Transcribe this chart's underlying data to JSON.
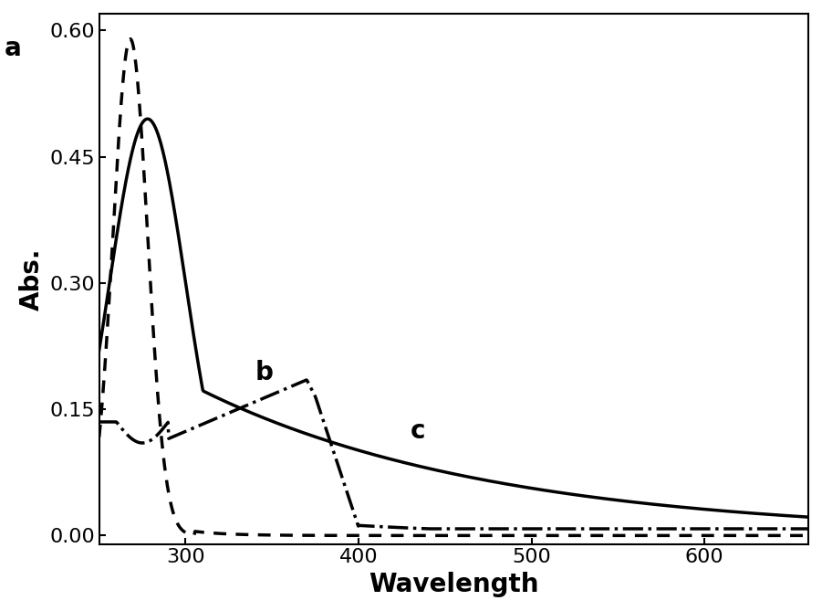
{
  "title": "",
  "xlabel": "Wavelength",
  "ylabel": "Abs.",
  "xlim": [
    250,
    660
  ],
  "ylim": [
    -0.01,
    0.62
  ],
  "yticks": [
    0.0,
    0.15,
    0.3,
    0.45,
    0.6
  ],
  "xticks": [
    300,
    400,
    500,
    600
  ],
  "background_color": "#ffffff",
  "curve_a_label": "a",
  "curve_b_label": "b",
  "curve_c_label": "c",
  "curve_a_style": "dotted",
  "curve_b_style": "dashdot",
  "curve_c_style": "solid",
  "curve_color": "#000000",
  "label_fontsize": 18,
  "axis_fontsize": 20,
  "tick_fontsize": 16
}
